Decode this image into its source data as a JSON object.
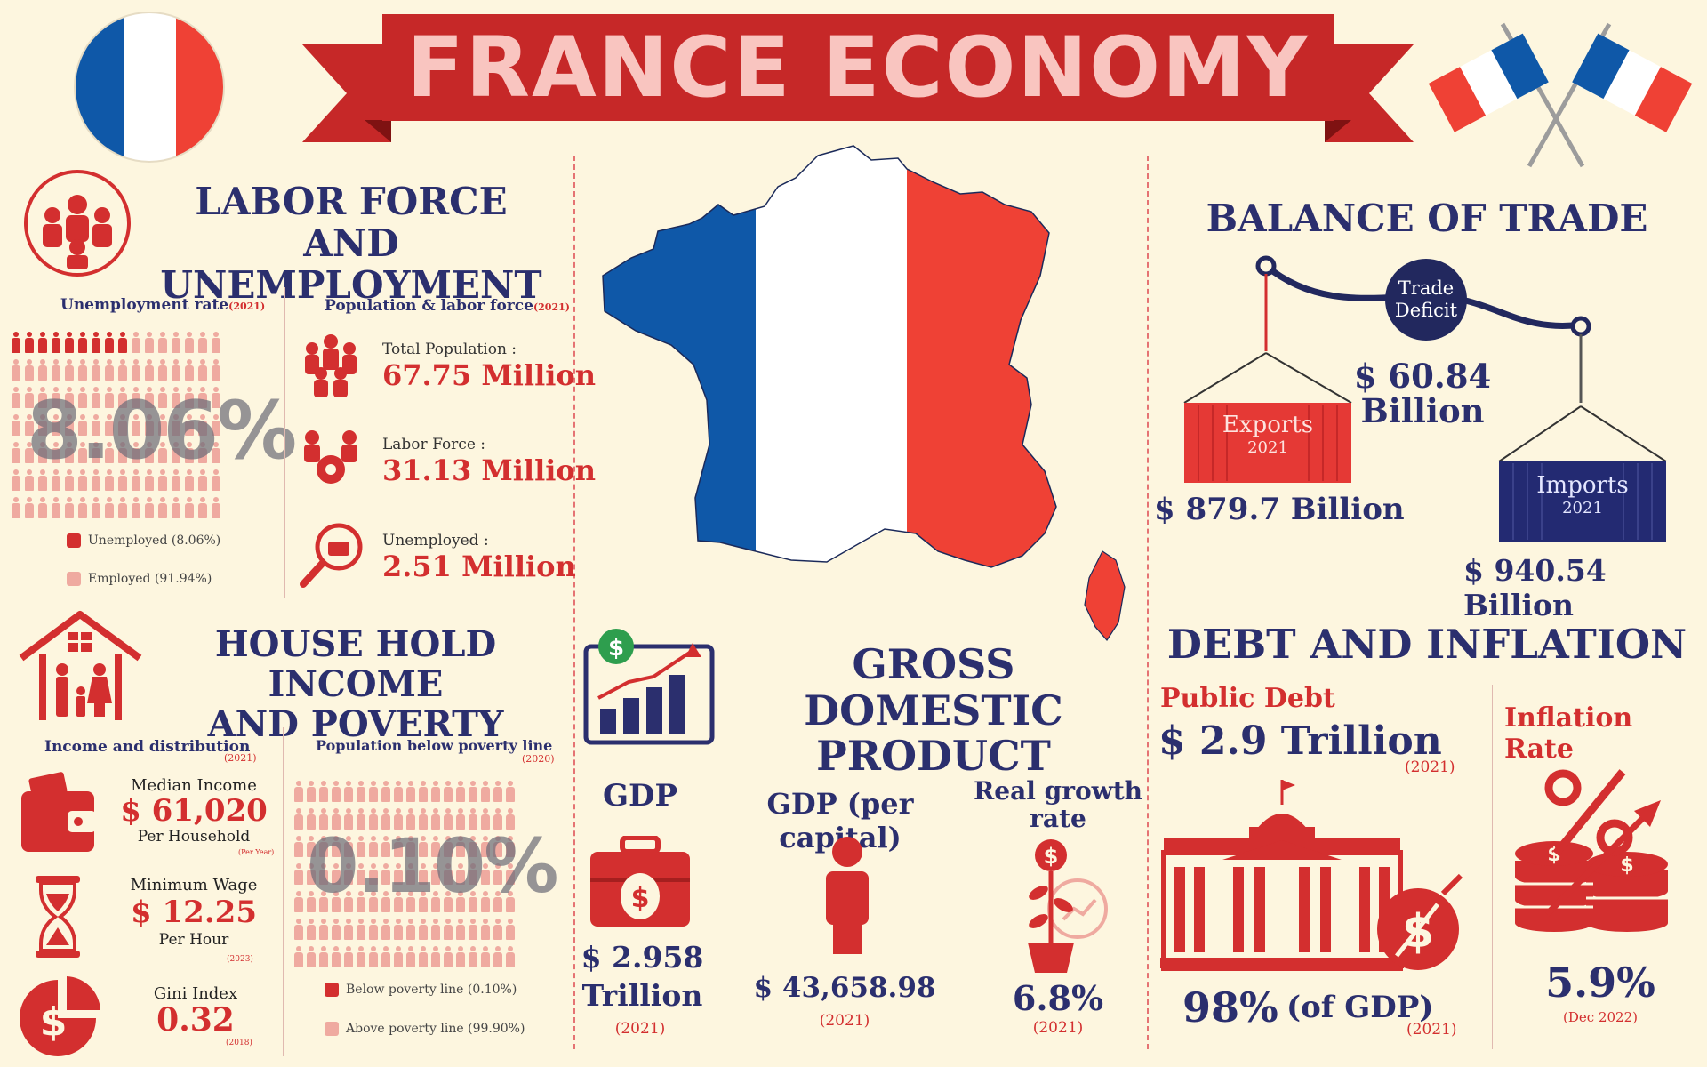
{
  "title": "FRANCE ECONOMY",
  "colors": {
    "navy": "#2b2f6e",
    "red": "#d32f2f",
    "light_red": "#efaaa0",
    "flag_blue": "#0f58a8",
    "flag_red": "#ef4135",
    "background": "#fdf6df"
  },
  "labor": {
    "title_line1": "LABOR FORCE AND",
    "title_line2": "UNEMPLOYMENT",
    "unemployment_rate_label": "Unemployment rate",
    "unemployment_rate_year": "(2021)",
    "unemployment_rate_value": "8.06%",
    "unemployed_fraction": 0.0806,
    "legend_unemployed": "Unemployed (8.06%)",
    "legend_employed": "Employed (91.94%)",
    "population_label": "Population & labor force",
    "population_year": "(2021)",
    "total_population_label": "Total Population :",
    "total_population_value": "67.75 Million",
    "labor_force_label": "Labor Force :",
    "labor_force_value": "31.13 Million",
    "unemployed_label": "Unemployed :",
    "unemployed_value": "2.51 Million"
  },
  "household": {
    "title_line1": "HOUSE HOLD INCOME",
    "title_line2": "AND POVERTY",
    "income_label": "Income and distribution",
    "income_year": "(2021)",
    "median_income_label": "Median Income",
    "median_income_value": "$ 61,020",
    "median_income_unit": "Per Household",
    "median_income_note": "(Per Year)",
    "min_wage_label": "Minimum Wage",
    "min_wage_value": "$ 12.25",
    "min_wage_unit": "Per Hour",
    "min_wage_year": "(2023)",
    "gini_label": "Gini Index",
    "gini_value": "0.32",
    "gini_year": "(2018)",
    "poverty_label": "Population below poverty line",
    "poverty_year": "(2020)",
    "poverty_value": "0.10%",
    "below_fraction": 0.001,
    "legend_below": "Below poverty line (0.10%)",
    "legend_above": "Above poverty line (99.90%)"
  },
  "gdp": {
    "title_line1": "GROSS DOMESTIC",
    "title_line2": "PRODUCT",
    "gdp_label": "GDP",
    "gdp_value_line1": "$ 2.958",
    "gdp_value_line2": "Trillion",
    "gdp_year": "(2021)",
    "per_capita_label": "GDP (per capital)",
    "per_capita_value": "$ 43,658.98",
    "per_capita_year": "(2021)",
    "growth_label_line1": "Real growth",
    "growth_label_line2": "rate",
    "growth_value": "6.8%",
    "growth_year": "(2021)"
  },
  "trade": {
    "title": "BALANCE OF TRADE",
    "deficit_label_line1": "Trade",
    "deficit_label_line2": "Deficit",
    "deficit_value_line1": "$ 60.84",
    "deficit_value_line2": "Billion",
    "exports_label": "Exports",
    "exports_year": "2021",
    "exports_value": "$ 879.7 Billion",
    "imports_label": "Imports",
    "imports_year": "2021",
    "imports_value": "$ 940.54 Billion"
  },
  "debt": {
    "title": "DEBT AND INFLATION",
    "public_debt_label": "Public Debt",
    "public_debt_value": "$ 2.9 Trillion",
    "public_debt_year": "(2021)",
    "debt_gdp_value": "98%",
    "debt_gdp_unit": "(of GDP)",
    "debt_gdp_year": "(2021)",
    "inflation_label": "Inflation Rate",
    "inflation_value": "5.9%",
    "inflation_date": "(Dec 2022)"
  }
}
